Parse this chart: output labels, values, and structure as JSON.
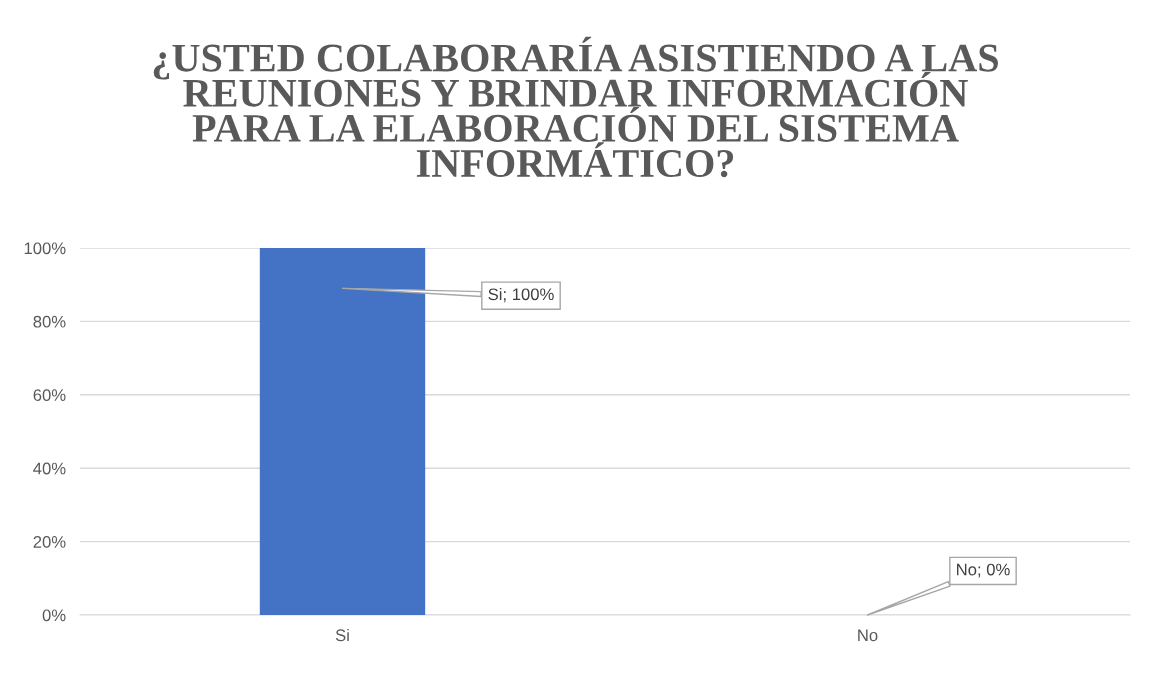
{
  "chart_data": {
    "type": "bar",
    "title": "¿USTED COLABORARÍA ASISTIENDO A LAS\nREUNIONES Y BRINDAR INFORMACIÓN\nPARA LA ELABORACIÓN DEL SISTEMA\nINFORMÁTICO?",
    "categories": [
      "Si",
      "No"
    ],
    "values": [
      100,
      0
    ],
    "color": "#4472c4",
    "value_labels": [
      "Si; 100%",
      "No; 0%"
    ],
    "ylim": [
      0,
      100
    ],
    "yticks": [
      {
        "value": 0,
        "label": "0%"
      },
      {
        "value": 20,
        "label": "20%"
      },
      {
        "value": 40,
        "label": "40%"
      },
      {
        "value": 60,
        "label": "60%"
      },
      {
        "value": 80,
        "label": "80%"
      },
      {
        "value": 100,
        "label": "100%"
      }
    ],
    "grid": "y",
    "legend": false
  }
}
